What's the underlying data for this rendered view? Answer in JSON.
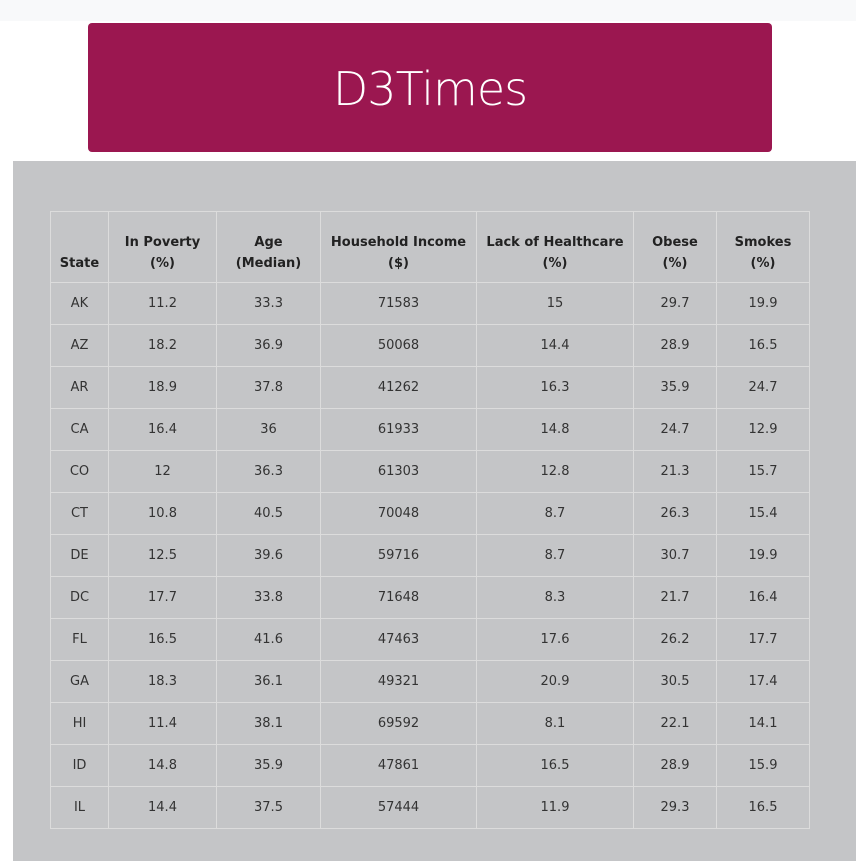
{
  "header": {
    "title": "D3Times"
  },
  "table": {
    "columns": [
      {
        "line1": "",
        "line2": "State"
      },
      {
        "line1": "In Poverty",
        "line2": "(%)"
      },
      {
        "line1": "Age",
        "line2": "(Median)"
      },
      {
        "line1": "Household Income",
        "line2": "($)"
      },
      {
        "line1": "Lack of Healthcare",
        "line2": "(%)"
      },
      {
        "line1": "Obese",
        "line2": "(%)"
      },
      {
        "line1": "Smokes",
        "line2": "(%)"
      }
    ],
    "rows": [
      [
        "AK",
        "11.2",
        "33.3",
        "71583",
        "15",
        "29.7",
        "19.9"
      ],
      [
        "AZ",
        "18.2",
        "36.9",
        "50068",
        "14.4",
        "28.9",
        "16.5"
      ],
      [
        "AR",
        "18.9",
        "37.8",
        "41262",
        "16.3",
        "35.9",
        "24.7"
      ],
      [
        "CA",
        "16.4",
        "36",
        "61933",
        "14.8",
        "24.7",
        "12.9"
      ],
      [
        "CO",
        "12",
        "36.3",
        "61303",
        "12.8",
        "21.3",
        "15.7"
      ],
      [
        "CT",
        "10.8",
        "40.5",
        "70048",
        "8.7",
        "26.3",
        "15.4"
      ],
      [
        "DE",
        "12.5",
        "39.6",
        "59716",
        "8.7",
        "30.7",
        "19.9"
      ],
      [
        "DC",
        "17.7",
        "33.8",
        "71648",
        "8.3",
        "21.7",
        "16.4"
      ],
      [
        "FL",
        "16.5",
        "41.6",
        "47463",
        "17.6",
        "26.2",
        "17.7"
      ],
      [
        "GA",
        "18.3",
        "36.1",
        "49321",
        "20.9",
        "30.5",
        "17.4"
      ],
      [
        "HI",
        "11.4",
        "38.1",
        "69592",
        "8.1",
        "22.1",
        "14.1"
      ],
      [
        "ID",
        "14.8",
        "35.9",
        "47861",
        "16.5",
        "28.9",
        "15.9"
      ],
      [
        "IL",
        "14.4",
        "37.5",
        "57444",
        "11.9",
        "29.3",
        "16.5"
      ]
    ]
  },
  "colors": {
    "banner": "#9b1750",
    "panel": "#c4c5c7",
    "top_strip": "#f8f9fa"
  }
}
